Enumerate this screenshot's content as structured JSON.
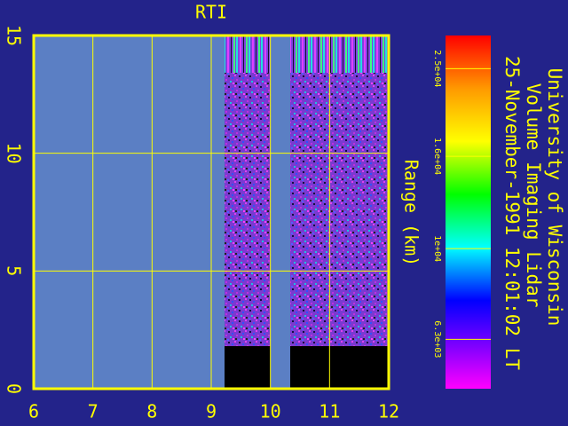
{
  "chart_data": {
    "type": "heatmap",
    "title": "RTI",
    "ylabel": "Range (km)",
    "xlim": [
      6,
      12
    ],
    "xticks": [
      6,
      7,
      8,
      9,
      10,
      11,
      12
    ],
    "ylim": [
      0,
      15
    ],
    "yticks": [
      0,
      5,
      10,
      15
    ],
    "grid": true,
    "colorbar": {
      "scale": "log",
      "clim": [
        4900,
        29600
      ],
      "ticks": [
        {
          "value": 25000,
          "label": "2.5e+04"
        },
        {
          "value": 16000,
          "label": "1.6e+04"
        },
        {
          "value": 10000,
          "label": "1e+04"
        },
        {
          "value": 6300,
          "label": "6.3e+03"
        }
      ]
    },
    "annotations": [
      "University of Wisconsin",
      "Volume Imaging Lidar",
      "25-November-1991 12:01:02 LT"
    ]
  }
}
